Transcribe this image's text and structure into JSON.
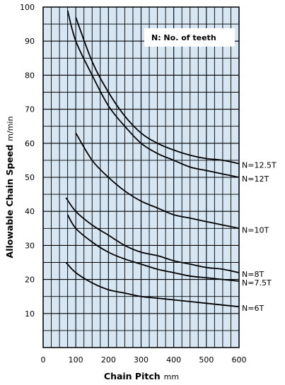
{
  "chart_data": {
    "type": "line",
    "xlabel": "Chain Pitch",
    "xlabel_unit": "mm",
    "ylabel": "Allowable Chain Speed",
    "ylabel_unit": "m/min",
    "xlim": [
      0,
      600
    ],
    "ylim": [
      0,
      100
    ],
    "x_ticks": [
      "0",
      "100",
      "200",
      "300",
      "400",
      "500",
      "600"
    ],
    "y_ticks": [
      "10",
      "20",
      "30",
      "40",
      "50",
      "60",
      "70",
      "80",
      "90",
      "100"
    ],
    "grid": true,
    "background_color": "#d6e6f3",
    "line_color": "#000000",
    "annotation": "N: No. of teeth",
    "series": [
      {
        "name": "N=12.5T",
        "points": [
          [
            100,
            97
          ],
          [
            150,
            84
          ],
          [
            200,
            75
          ],
          [
            250,
            68
          ],
          [
            300,
            63
          ],
          [
            350,
            60
          ],
          [
            400,
            58
          ],
          [
            450,
            56.5
          ],
          [
            500,
            55.5
          ],
          [
            550,
            55
          ],
          [
            600,
            54
          ]
        ]
      },
      {
        "name": "N=12T",
        "points": [
          [
            75,
            99
          ],
          [
            100,
            90
          ],
          [
            150,
            80
          ],
          [
            200,
            71
          ],
          [
            250,
            65
          ],
          [
            300,
            60
          ],
          [
            350,
            57
          ],
          [
            400,
            55
          ],
          [
            450,
            53
          ],
          [
            500,
            52
          ],
          [
            550,
            51
          ],
          [
            600,
            50
          ]
        ]
      },
      {
        "name": "N=10T",
        "points": [
          [
            100,
            63
          ],
          [
            150,
            55
          ],
          [
            200,
            50
          ],
          [
            250,
            46
          ],
          [
            300,
            43
          ],
          [
            350,
            41
          ],
          [
            400,
            39
          ],
          [
            450,
            38
          ],
          [
            500,
            37
          ],
          [
            550,
            36
          ],
          [
            600,
            35
          ]
        ]
      },
      {
        "name": "N=8T",
        "points": [
          [
            70,
            44
          ],
          [
            100,
            40
          ],
          [
            150,
            36
          ],
          [
            200,
            33
          ],
          [
            250,
            30
          ],
          [
            300,
            28
          ],
          [
            350,
            27
          ],
          [
            400,
            25.5
          ],
          [
            450,
            24.5
          ],
          [
            500,
            23.5
          ],
          [
            550,
            23
          ],
          [
            600,
            22
          ]
        ]
      },
      {
        "name": "N=7.5T",
        "points": [
          [
            75,
            39
          ],
          [
            100,
            35
          ],
          [
            150,
            31
          ],
          [
            200,
            28
          ],
          [
            250,
            26
          ],
          [
            300,
            24.5
          ],
          [
            350,
            23
          ],
          [
            400,
            22
          ],
          [
            450,
            21
          ],
          [
            500,
            20.5
          ],
          [
            550,
            20
          ],
          [
            600,
            19.5
          ]
        ]
      },
      {
        "name": "N=6T",
        "points": [
          [
            70,
            25
          ],
          [
            100,
            22
          ],
          [
            150,
            19
          ],
          [
            200,
            17
          ],
          [
            250,
            16
          ],
          [
            300,
            15
          ],
          [
            350,
            14.5
          ],
          [
            400,
            14
          ],
          [
            450,
            13.5
          ],
          [
            500,
            13
          ],
          [
            550,
            12.5
          ],
          [
            600,
            12
          ]
        ]
      }
    ]
  }
}
